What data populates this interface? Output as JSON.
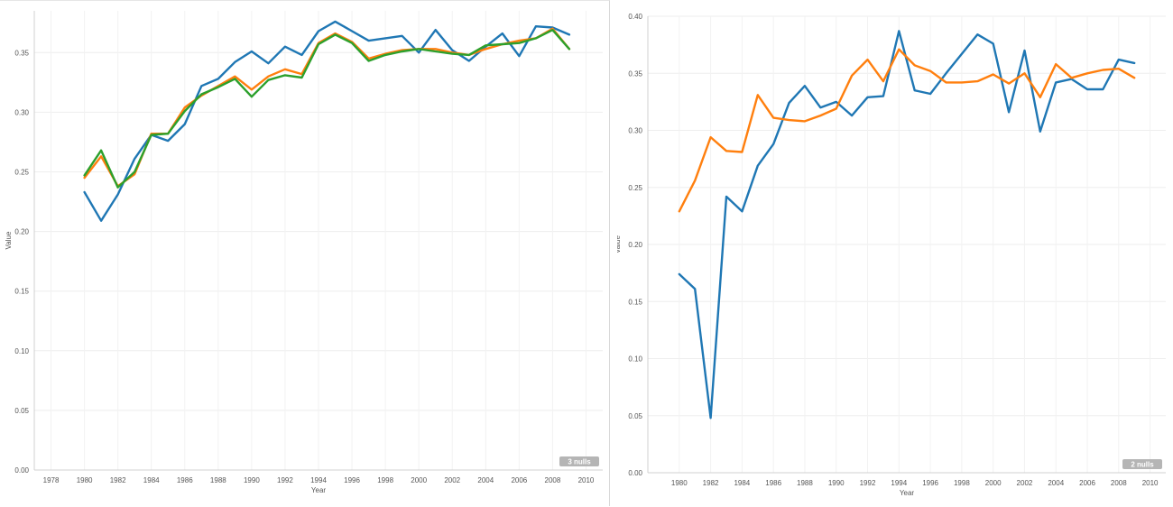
{
  "chart_data": [
    {
      "type": "line",
      "xlabel": "Year",
      "ylabel": "Value",
      "x_ticks": [
        "1978",
        "1980",
        "1982",
        "1984",
        "1986",
        "1988",
        "1990",
        "1992",
        "1994",
        "1996",
        "1998",
        "2000",
        "2002",
        "2004",
        "2006",
        "2008",
        "2010"
      ],
      "y_ticks": [
        "0.00",
        "0.05",
        "0.10",
        "0.15",
        "0.20",
        "0.25",
        "0.30",
        "0.35"
      ],
      "xlim": [
        1977,
        2011
      ],
      "ylim": [
        0,
        0.385
      ],
      "grid": true,
      "null_badge": "3 nulls",
      "x": [
        1980,
        1981,
        1982,
        1983,
        1984,
        1985,
        1986,
        1987,
        1988,
        1989,
        1990,
        1991,
        1992,
        1993,
        1994,
        1995,
        1996,
        1997,
        1998,
        1999,
        2000,
        2001,
        2002,
        2003,
        2004,
        2005,
        2006,
        2007,
        2008,
        2009
      ],
      "series": [
        {
          "color": "#1f77b4",
          "values": [
            0.233,
            0.209,
            0.231,
            0.261,
            0.281,
            0.276,
            0.29,
            0.322,
            0.328,
            0.342,
            0.351,
            0.341,
            0.355,
            0.348,
            0.368,
            0.376,
            0.368,
            0.36,
            0.362,
            0.364,
            0.35,
            0.369,
            0.352,
            0.343,
            0.355,
            0.366,
            0.347,
            0.372,
            0.371,
            0.365
          ]
        },
        {
          "color": "#ff7f0e",
          "values": [
            0.245,
            0.263,
            0.238,
            0.248,
            0.282,
            0.282,
            0.304,
            0.314,
            0.322,
            0.33,
            0.319,
            0.33,
            0.336,
            0.332,
            0.358,
            0.366,
            0.359,
            0.345,
            0.349,
            0.352,
            0.353,
            0.353,
            0.35,
            0.348,
            0.353,
            0.357,
            0.36,
            0.362,
            0.37,
            0.353
          ]
        },
        {
          "color": "#2ca02c",
          "values": [
            0.247,
            0.268,
            0.237,
            0.25,
            0.281,
            0.282,
            0.301,
            0.315,
            0.321,
            0.328,
            0.313,
            0.327,
            0.331,
            0.329,
            0.357,
            0.365,
            0.358,
            0.343,
            0.348,
            0.351,
            0.353,
            0.351,
            0.349,
            0.348,
            0.356,
            0.357,
            0.358,
            0.362,
            0.369,
            0.353
          ]
        }
      ]
    },
    {
      "type": "line",
      "xlabel": "Year",
      "ylabel": "Value",
      "x_ticks": [
        "1980",
        "1982",
        "1984",
        "1986",
        "1988",
        "1990",
        "1992",
        "1994",
        "1996",
        "1998",
        "2000",
        "2002",
        "2004",
        "2006",
        "2008",
        "2010"
      ],
      "y_ticks": [
        "0.00",
        "0.05",
        "0.10",
        "0.15",
        "0.20",
        "0.25",
        "0.30",
        "0.35",
        "0.40"
      ],
      "xlim": [
        1978,
        2011
      ],
      "ylim": [
        0,
        0.4
      ],
      "grid": true,
      "null_badge": "2 nulls",
      "x": [
        1980,
        1981,
        1982,
        1983,
        1984,
        1985,
        1986,
        1987,
        1988,
        1989,
        1990,
        1991,
        1992,
        1993,
        1994,
        1995,
        1996,
        1997,
        1998,
        1999,
        2000,
        2001,
        2002,
        2003,
        2004,
        2005,
        2006,
        2007,
        2008,
        2009
      ],
      "series": [
        {
          "color": "#1f77b4",
          "values": [
            0.174,
            0.161,
            0.048,
            0.242,
            0.229,
            0.269,
            0.288,
            0.324,
            0.339,
            0.32,
            0.325,
            0.313,
            0.329,
            0.33,
            0.387,
            0.335,
            0.332,
            0.35,
            0.367,
            0.384,
            0.376,
            0.316,
            0.37,
            0.299,
            0.342,
            0.345,
            0.336,
            0.336,
            0.362,
            0.359
          ]
        },
        {
          "color": "#ff7f0e",
          "values": [
            0.229,
            0.256,
            0.294,
            0.282,
            0.281,
            0.331,
            0.311,
            0.309,
            0.308,
            0.313,
            0.319,
            0.348,
            0.362,
            0.343,
            0.371,
            0.357,
            0.352,
            0.342,
            0.342,
            0.343,
            0.349,
            0.341,
            0.35,
            0.329,
            0.358,
            0.346,
            0.35,
            0.353,
            0.354,
            0.346
          ]
        }
      ]
    }
  ]
}
